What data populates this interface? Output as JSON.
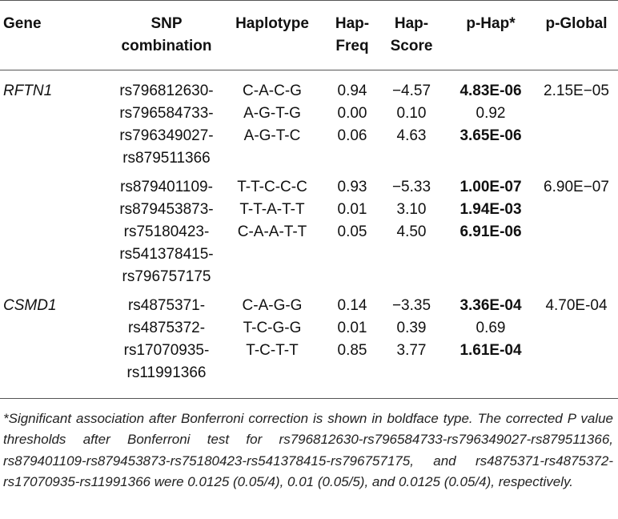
{
  "headers": {
    "gene": "Gene",
    "snp": [
      "SNP",
      "combination"
    ],
    "haplotype": "Haplotype",
    "hapfreq": [
      "Hap-",
      "Freq"
    ],
    "hapscore": [
      "Hap-",
      "Score"
    ],
    "phap": "p-Hap*",
    "pglobal": "p-Global"
  },
  "groups": [
    {
      "gene": "RFTN1",
      "snps": [
        "rs796812630-",
        "rs796584733-",
        "rs796349027-",
        "rs879511366"
      ],
      "rows": [
        {
          "haplotype": "C-A-C-G",
          "freq": "0.94",
          "score": "−4.57",
          "phap": "4.83E-06",
          "bold": true
        },
        {
          "haplotype": "A-G-T-G",
          "freq": "0.00",
          "score": "0.10",
          "phap": "0.92",
          "bold": false
        },
        {
          "haplotype": "A-G-T-C",
          "freq": "0.06",
          "score": "4.63",
          "phap": "3.65E-06",
          "bold": true
        }
      ],
      "pglobal": "2.15E−05"
    },
    {
      "gene": "",
      "snps": [
        "rs879401109-",
        "rs879453873-",
        "rs75180423-",
        "rs541378415-",
        "rs796757175"
      ],
      "rows": [
        {
          "haplotype": "T-T-C-C-C",
          "freq": "0.93",
          "score": "−5.33",
          "phap": "1.00E-07",
          "bold": true
        },
        {
          "haplotype": "T-T-A-T-T",
          "freq": "0.01",
          "score": "3.10",
          "phap": "1.94E-03",
          "bold": true
        },
        {
          "haplotype": "C-A-A-T-T",
          "freq": "0.05",
          "score": "4.50",
          "phap": "6.91E-06",
          "bold": true
        }
      ],
      "pglobal": "6.90E−07"
    },
    {
      "gene": "CSMD1",
      "snps": [
        "rs4875371-",
        "rs4875372-",
        "rs17070935-",
        "rs11991366"
      ],
      "rows": [
        {
          "haplotype": "C-A-G-G",
          "freq": "0.14",
          "score": "−3.35",
          "phap": "3.36E-04",
          "bold": true
        },
        {
          "haplotype": "T-C-G-G",
          "freq": "0.01",
          "score": "0.39",
          "phap": "0.69",
          "bold": false
        },
        {
          "haplotype": "T-C-T-T",
          "freq": "0.85",
          "score": "3.77",
          "phap": "1.61E-04",
          "bold": true
        }
      ],
      "pglobal": "4.70E-04"
    }
  ],
  "footnote": "*Significant association after Bonferroni correction is shown in boldface type. The corrected P value thresholds after Bonferroni test for rs796812630-rs796584733-rs796349027-rs879511366, rs879401109-rs879453873-rs75180423-rs541378415-rs796757175, and rs4875371-rs4875372-rs17070935-rs11991366 were 0.0125 (0.05/4), 0.01 (0.05/5), and 0.0125 (0.05/4), respectively."
}
